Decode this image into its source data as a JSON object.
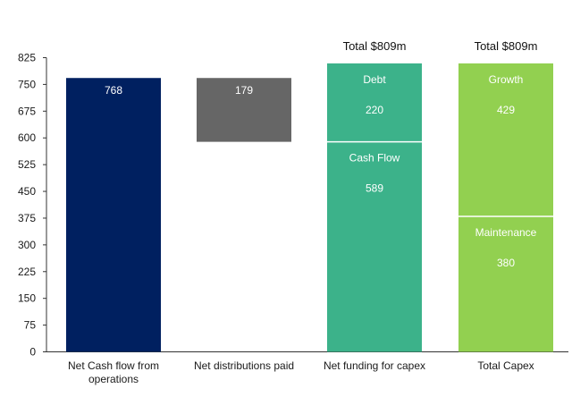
{
  "chart_data": {
    "type": "bar",
    "ylim": [
      0,
      825
    ],
    "yticks": [
      "0",
      "75",
      "150",
      "225",
      "300",
      "375",
      "450",
      "525",
      "600",
      "675",
      "750",
      "825"
    ],
    "grid": false,
    "categories": [
      [
        "Net Cash flow from",
        "operations"
      ],
      [
        "Net distributions paid"
      ],
      [
        "Net funding for capex"
      ],
      [
        "Total Capex"
      ]
    ],
    "totals": [
      "",
      "",
      "Total $809m",
      "Total $809m"
    ],
    "bars": [
      {
        "segments": [
          {
            "from": 0,
            "to": 768,
            "color": "#002060",
            "value_label": "768",
            "name_label": ""
          }
        ]
      },
      {
        "segments": [
          {
            "from": 589,
            "to": 768,
            "color": "#666666",
            "value_label": "179",
            "name_label": ""
          }
        ]
      },
      {
        "segments": [
          {
            "from": 0,
            "to": 589,
            "color": "#3cb28a",
            "value_label": "589",
            "name_label": "Cash Flow"
          },
          {
            "from": 589,
            "to": 809,
            "color": "#3cb28a",
            "value_label": "220",
            "name_label": "Debt"
          }
        ]
      },
      {
        "segments": [
          {
            "from": 0,
            "to": 380,
            "color": "#92d050",
            "value_label": "380",
            "name_label": "Maintenance"
          },
          {
            "from": 380,
            "to": 809,
            "color": "#92d050",
            "value_label": "429",
            "name_label": "Growth"
          }
        ]
      }
    ]
  }
}
